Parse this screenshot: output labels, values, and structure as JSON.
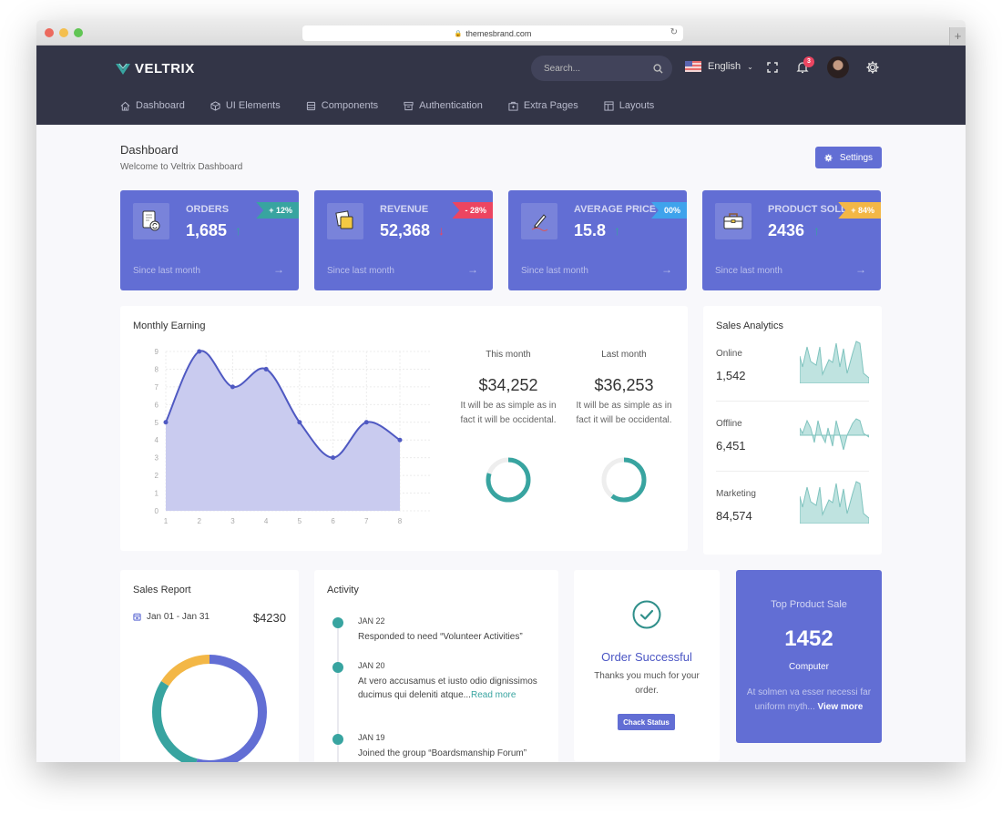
{
  "browser": {
    "url": "themesbrand.com",
    "traffic_lights": [
      "#ec6a5e",
      "#f4bf4f",
      "#61c554"
    ]
  },
  "header": {
    "brand": "VELTRIX",
    "search_placeholder": "Search...",
    "language": "English",
    "notification_count": "3"
  },
  "nav": {
    "items": [
      {
        "label": "Dashboard",
        "icon": "home-icon"
      },
      {
        "label": "UI Elements",
        "icon": "cube-icon"
      },
      {
        "label": "Components",
        "icon": "database-icon"
      },
      {
        "label": "Authentication",
        "icon": "archive-icon"
      },
      {
        "label": "Extra Pages",
        "icon": "briefcase-icon"
      },
      {
        "label": "Layouts",
        "icon": "layout-icon"
      }
    ]
  },
  "page": {
    "title": "Dashboard",
    "subtitle": "Welcome to Veltrix Dashboard",
    "settings_label": "Settings"
  },
  "stats": [
    {
      "label": "ORDERS",
      "value": "1,685",
      "change": "+ 12%",
      "ribbon_color": "#38a4a0",
      "trend": "up",
      "since": "Since last month"
    },
    {
      "label": "REVENUE",
      "value": "52,368",
      "change": "- 28%",
      "ribbon_color": "#ec4561",
      "trend": "down",
      "since": "Since last month"
    },
    {
      "label": "AVERAGE PRICE",
      "value": "15.8",
      "change": "00%",
      "ribbon_color": "#3fa3ec",
      "trend": "up",
      "since": "Since last month"
    },
    {
      "label": "PRODUCT SOLD",
      "value": "2436",
      "change": "+ 84%",
      "ribbon_color": "#f3b746",
      "trend": "up",
      "since": "Since last month"
    }
  ],
  "monthly_earning": {
    "title": "Monthly Earning",
    "this_month": {
      "label": "This month",
      "value": "$34,252",
      "desc": "It will be as simple as in fact it will be occidental.",
      "percent": 80
    },
    "last_month": {
      "label": "Last month",
      "value": "$36,253",
      "desc": "It will be as simple as in fact it will be occidental.",
      "percent": 60
    }
  },
  "chart_data": {
    "type": "area",
    "title": "Monthly Earning",
    "x": [
      1,
      2,
      3,
      4,
      5,
      6,
      7,
      8
    ],
    "values": [
      5,
      9,
      7,
      8,
      5,
      3,
      5,
      4
    ],
    "ylim": [
      0,
      9
    ],
    "yticks": [
      0,
      1,
      2,
      3,
      4,
      5,
      6,
      7,
      8,
      9
    ],
    "grid": true,
    "line_color": "#4f59c2",
    "fill_color": "#c9cbef"
  },
  "sales_analytics": {
    "title": "Sales Analytics",
    "rows": [
      {
        "label": "Online",
        "value": "1,542"
      },
      {
        "label": "Offline",
        "value": "6,451"
      },
      {
        "label": "Marketing",
        "value": "84,574"
      }
    ]
  },
  "sales_report": {
    "title": "Sales Report",
    "range": "Jan 01 - Jan 31",
    "amount": "$4230",
    "segments": [
      {
        "color": "#626ed4",
        "percent": 54
      },
      {
        "color": "#38a4a0",
        "percent": 30
      },
      {
        "color": "#f3b746",
        "percent": 16
      }
    ]
  },
  "activity": {
    "title": "Activity",
    "items": [
      {
        "date": "JAN 22",
        "text": "Responded to need “Volunteer Activities”"
      },
      {
        "date": "JAN 20",
        "text": "At vero accusamus et iusto odio dignissimos ducimus qui deleniti atque...",
        "link": "Read more"
      },
      {
        "date": "JAN 19",
        "text": "Joined the group “Boardsmanship Forum”"
      }
    ]
  },
  "order": {
    "title": "Order Successful",
    "desc": "Thanks you much for your order.",
    "button": "Chack Status"
  },
  "top_product": {
    "title": "Top Product Sale",
    "value": "1452",
    "subtitle": "Computer",
    "desc": "At solmen va esser necessi far uniform myth...",
    "link": "View more"
  }
}
